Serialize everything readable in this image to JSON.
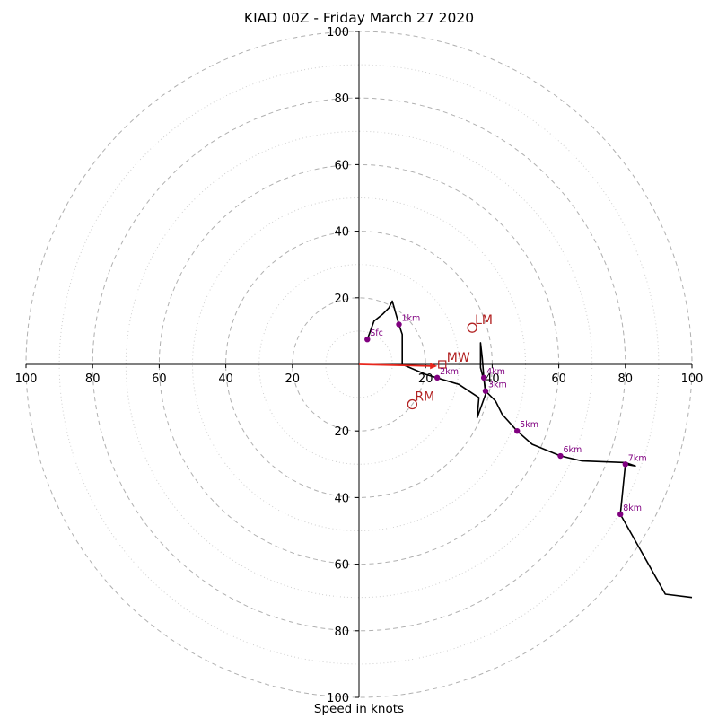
{
  "chart_data": {
    "type": "hodograph",
    "title": "KIAD 00Z - Friday March 27 2020",
    "xlabel": "Speed in knots",
    "ring_labels": [
      "20",
      "40",
      "60",
      "80",
      "100"
    ],
    "rings_dashed": [
      20,
      40,
      60,
      80,
      100
    ],
    "rings_dotted": [
      10,
      30,
      50,
      70,
      90
    ],
    "range": [
      -100,
      100
    ],
    "colors": {
      "trace": "#000000",
      "height_marker": "#800080",
      "motion": "#b22222",
      "shear_arrow": "#e8261c",
      "grid": "#b0b0b0",
      "axes": "#000000"
    },
    "hodograph": [
      [
        2.5,
        7.5
      ],
      [
        4.5,
        13
      ],
      [
        7,
        15
      ],
      [
        9,
        17
      ],
      [
        10,
        19
      ],
      [
        12,
        12
      ],
      [
        13,
        9
      ],
      [
        13,
        7
      ],
      [
        13,
        0
      ],
      [
        20,
        -3
      ],
      [
        30,
        -6
      ],
      [
        36,
        -10
      ],
      [
        35.5,
        -16
      ],
      [
        38,
        -9
      ],
      [
        37.5,
        -4
      ],
      [
        37.5,
        -5
      ],
      [
        37,
        -3
      ],
      [
        36.5,
        -1
      ],
      [
        36.5,
        6.5
      ],
      [
        37,
        2
      ],
      [
        37.5,
        -4
      ],
      [
        38,
        -8
      ],
      [
        41,
        -11
      ],
      [
        43,
        -15
      ],
      [
        47.5,
        -20
      ],
      [
        52,
        -24
      ],
      [
        60.5,
        -27.5
      ],
      [
        67,
        -29
      ],
      [
        80,
        -29.5
      ],
      [
        83,
        -30.5
      ],
      [
        80,
        -30
      ],
      [
        78.5,
        -45
      ],
      [
        92,
        -69
      ],
      [
        100,
        -70
      ]
    ],
    "height_markers": [
      {
        "label": "Sfc",
        "u": 2.5,
        "v": 7.5
      },
      {
        "label": "1km",
        "u": 12,
        "v": 12
      },
      {
        "label": "2km",
        "u": 23.5,
        "v": -4
      },
      {
        "label": "4km",
        "u": 37.5,
        "v": -4
      },
      {
        "label": "3km",
        "u": 38,
        "v": -8
      },
      {
        "label": "5km",
        "u": 47.5,
        "v": -20
      },
      {
        "label": "6km",
        "u": 60.5,
        "v": -27.5
      },
      {
        "label": "7km",
        "u": 80,
        "v": -30
      },
      {
        "label": "8km",
        "u": 78.5,
        "v": -45
      }
    ],
    "storm_motion": [
      {
        "label": "LM",
        "u": 34,
        "v": 11,
        "shape": "circle"
      },
      {
        "label": "RM",
        "u": 16,
        "v": -12,
        "shape": "circle"
      },
      {
        "label": "MW",
        "u": 25,
        "v": 0,
        "shape": "square"
      }
    ],
    "shear_arrow": {
      "from": [
        0,
        0
      ],
      "to": [
        23.5,
        -0.5
      ]
    }
  }
}
